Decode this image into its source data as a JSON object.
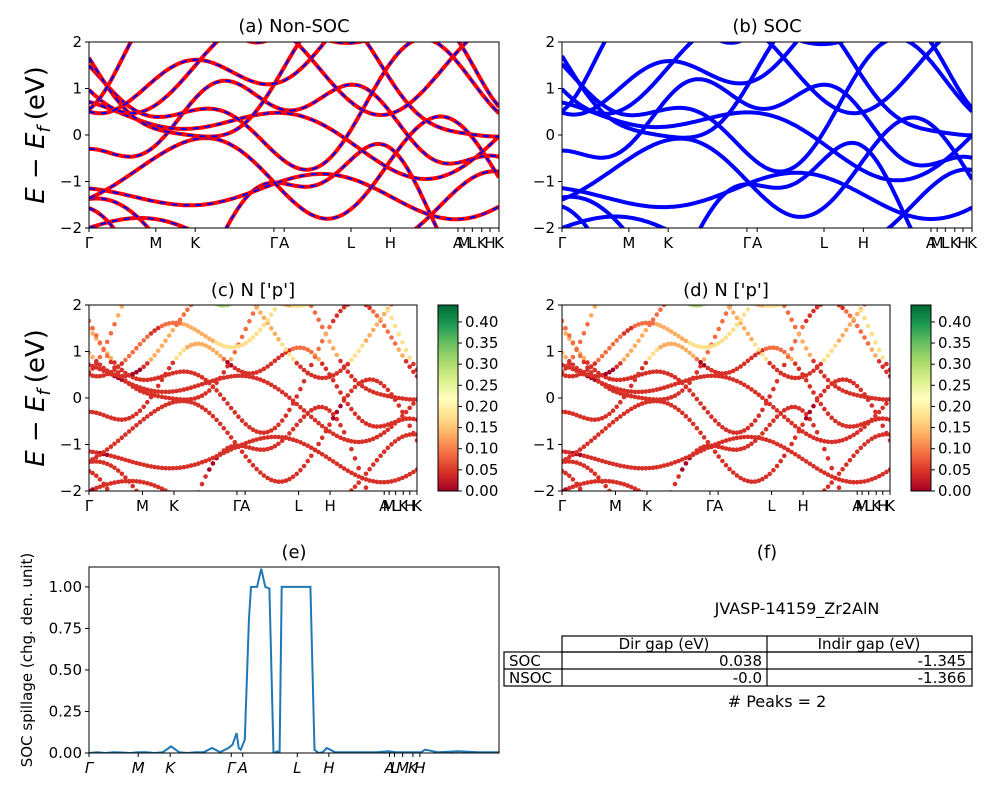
{
  "ylabel_main": "E − E",
  "ylabel_sub": "f",
  "ylabel_unit": "(eV)",
  "ticks_sym": [
    "Γ",
    "M",
    "K",
    "Γ",
    "A",
    "L",
    "H",
    "A",
    "M",
    "L",
    "K",
    "H",
    "K"
  ],
  "ticks_sym_e": [
    "Γ",
    "M",
    "K",
    "Γ",
    "A",
    "L",
    "H",
    "A",
    "L",
    "M",
    "K",
    "H"
  ],
  "chart_data": [
    {
      "id": "a",
      "type": "line",
      "title": "(a) Non-SOC",
      "ylim": [
        -2,
        2
      ],
      "yticks": [
        -2,
        -1,
        0,
        1,
        2
      ],
      "xticks": [
        0,
        0.163,
        0.259,
        0.451,
        0.476,
        0.639,
        0.735,
        0.9,
        0.915,
        0.935,
        0.958,
        0.978,
        1.0
      ],
      "series": [
        {
          "name": "",
          "color": "#ff0000",
          "dashed_overlay": "#0000ff"
        }
      ]
    },
    {
      "id": "b",
      "type": "line",
      "title": "(b) SOC",
      "ylim": [
        -2,
        2
      ],
      "yticks": [
        -2,
        -1,
        0,
        1,
        2
      ],
      "xticks": [
        0,
        0.163,
        0.259,
        0.451,
        0.476,
        0.639,
        0.735,
        0.9,
        0.915,
        0.935,
        0.958,
        0.978,
        1.0
      ],
      "series": [
        {
          "name": "",
          "color": "#0000ff"
        }
      ]
    },
    {
      "id": "c",
      "type": "scatter",
      "title": "(c)  N ['p']",
      "ylim": [
        -2,
        2
      ],
      "yticks": [
        -2,
        -1,
        0,
        1,
        2
      ],
      "xticks": [
        0,
        0.163,
        0.259,
        0.451,
        0.476,
        0.639,
        0.735,
        0.9,
        0.915,
        0.935,
        0.958,
        0.978,
        1.0
      ],
      "colorbar": {
        "ticks": [
          "0.00",
          "0.05",
          "0.10",
          "0.15",
          "0.20",
          "0.25",
          "0.30",
          "0.35",
          "0.40"
        ],
        "max": 0.44,
        "colormap": "RdYlGn"
      }
    },
    {
      "id": "d",
      "type": "scatter",
      "title": "(d) N ['p']",
      "ylim": [
        -2,
        2
      ],
      "yticks": [
        -2,
        -1,
        0,
        1,
        2
      ],
      "xticks": [
        0,
        0.163,
        0.259,
        0.451,
        0.476,
        0.639,
        0.735,
        0.9,
        0.915,
        0.935,
        0.958,
        0.978,
        1.0
      ],
      "colorbar": {
        "ticks": [
          "0.00",
          "0.05",
          "0.10",
          "0.15",
          "0.20",
          "0.25",
          "0.30",
          "0.35",
          "0.40"
        ],
        "max": 0.44,
        "colormap": "RdYlGn"
      }
    },
    {
      "id": "e",
      "type": "line",
      "title": "(e)",
      "ylabel": "SOC spillage (chg. den. unit)",
      "ylim": [
        0,
        1.12
      ],
      "yticks": [
        "0.00",
        "0.25",
        "0.50",
        "0.75",
        "1.00"
      ],
      "xticks": [
        0,
        0.12,
        0.198,
        0.347,
        0.375,
        0.508,
        0.585,
        0.733,
        0.745,
        0.765,
        0.79,
        0.807
      ],
      "x": [
        0,
        0.02,
        0.04,
        0.06,
        0.08,
        0.1,
        0.12,
        0.14,
        0.16,
        0.18,
        0.2,
        0.22,
        0.24,
        0.26,
        0.28,
        0.3,
        0.32,
        0.34,
        0.35,
        0.36,
        0.365,
        0.37,
        0.38,
        0.39,
        0.395,
        0.4,
        0.41,
        0.42,
        0.43,
        0.44,
        0.45,
        0.46,
        0.465,
        0.47,
        0.48,
        0.49,
        0.5,
        0.51,
        0.52,
        0.53,
        0.54,
        0.55,
        0.56,
        0.57,
        0.58,
        0.6,
        0.62,
        0.65,
        0.7,
        0.73,
        0.75,
        0.78,
        0.8,
        0.81,
        0.82,
        0.85,
        0.9,
        0.95,
        1.0
      ],
      "values": [
        0.0,
        0.005,
        0.0,
        0.005,
        0.003,
        0.0,
        0.005,
        0.005,
        0.0,
        0.005,
        0.04,
        0.005,
        0.0,
        0.005,
        0.005,
        0.03,
        0.005,
        0.03,
        0.05,
        0.12,
        0.03,
        0.02,
        0.08,
        0.8,
        1.0,
        1.0,
        1.0,
        1.11,
        1.0,
        0.99,
        0.0,
        0.01,
        0.0,
        1.0,
        1.0,
        1.0,
        1.0,
        1.0,
        1.0,
        1.0,
        1.0,
        0.02,
        0.0,
        0.005,
        0.03,
        0.005,
        0.005,
        0.005,
        0.005,
        0.01,
        0.005,
        0.005,
        0.005,
        0.005,
        0.02,
        0.005,
        0.01,
        0.005,
        0.005
      ],
      "color": "#1f77b4"
    }
  ],
  "panel_f": {
    "title": "(f)",
    "material": "JVASP-14159_Zr2AlN",
    "table": {
      "headers": [
        "",
        "Dir gap (eV)",
        "Indir gap (eV)"
      ],
      "rows": [
        [
          "SOC",
          "0.038",
          "-1.345"
        ],
        [
          "NSOC",
          "-0.0",
          "-1.366"
        ]
      ]
    },
    "peaks": "# Peaks = 2"
  }
}
